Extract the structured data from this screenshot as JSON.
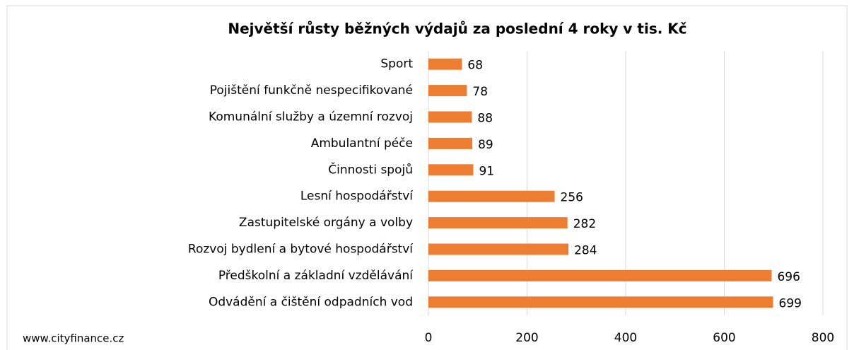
{
  "chart_data": {
    "type": "bar",
    "orientation": "horizontal",
    "title": "Největší růsty běžných výdajů za poslední 4 roky v tis. Kč",
    "categories": [
      "Sport",
      "Pojištění funkčně nespecifikované",
      "Komunální služby a územní rozvoj",
      "Ambulantní péče",
      "Činnosti spojů",
      "Lesní hospodářství",
      "Zastupitelské orgány a volby",
      "Rozvoj bydlení a bytové hospodářství",
      "Předškolní a základní vzdělávání",
      "Odvádění a čištění odpadních vod"
    ],
    "values": [
      68,
      78,
      88,
      89,
      91,
      256,
      282,
      284,
      696,
      699
    ],
    "color": "#ed7d31",
    "xlim": [
      0,
      800
    ],
    "xticks": [
      0,
      200,
      400,
      600,
      800
    ],
    "grid": true,
    "source": "www.cityfinance.cz"
  }
}
